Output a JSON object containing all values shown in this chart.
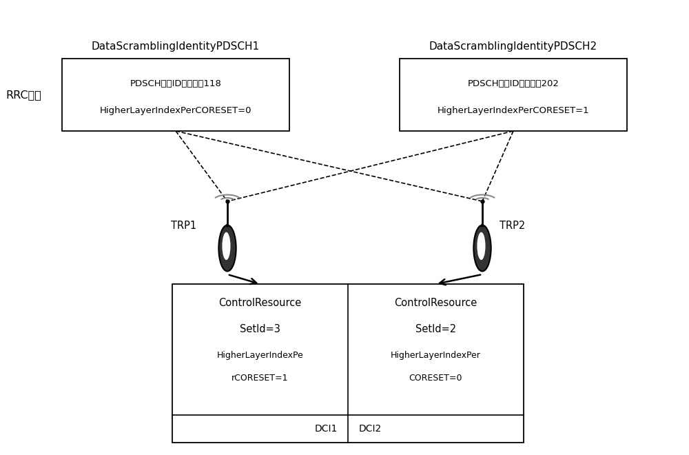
{
  "bg_color": "#ffffff",
  "box1_label_top": "DataScramblingIdentityPDSCH1",
  "box2_label_top": "DataScramblingIdentityPDSCH2",
  "rrc_label": "RRC参数",
  "box1_line1": "PDSCH加扰ID的具体値118",
  "box1_line2": "HigherLayerIndexPerCORESET=0",
  "box2_line1": "PDSCH加扰ID的具体値202",
  "box2_line2": "HigherLayerIndexPerCORESET=1",
  "trp1_label": "TRP1",
  "trp2_label": "TRP2",
  "bl_line1": "ControlResource",
  "bl_line2": "SetId=3",
  "bl_line3": "HigherLayerIndexPe",
  "bl_line4": "rCORESET=1",
  "bl_dci": "DCI1",
  "br_line1": "ControlResource",
  "br_line2": "SetId=2",
  "br_line3": "HigherLayerIndexPer",
  "br_line4": "CORESET=0",
  "br_dci": "DCI2",
  "figw": 10.0,
  "figh": 6.6,
  "dpi": 100
}
